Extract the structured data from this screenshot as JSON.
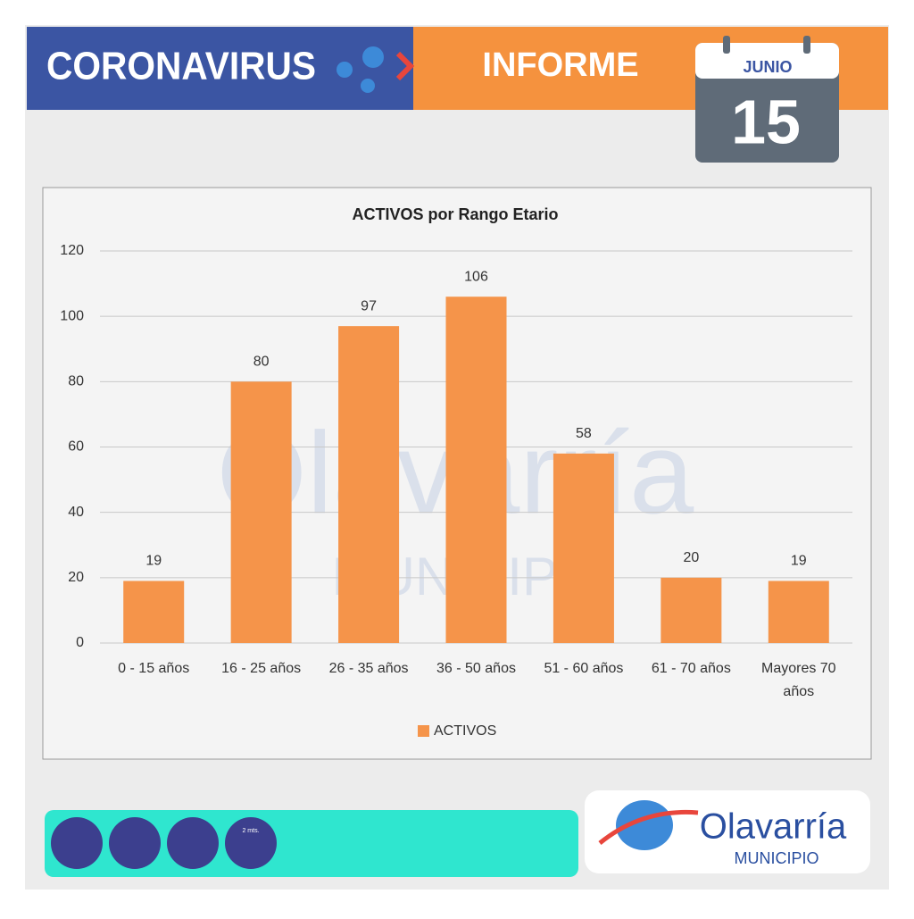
{
  "header": {
    "title": "CORONAVIRUS",
    "subtitle": "INFORME",
    "month": "JUNIO",
    "day": "15"
  },
  "chart_data": {
    "type": "bar",
    "title": "ACTIVOS por Rango Etario",
    "categories": [
      "0 - 15 años",
      "16 - 25 años",
      "26 - 35 años",
      "36 - 50 años",
      "51 - 60 años",
      "61 - 70 años",
      "Mayores 70 años"
    ],
    "series": [
      {
        "name": "ACTIVOS",
        "color": "#f5944a",
        "values": [
          19,
          80,
          97,
          106,
          58,
          20,
          19
        ]
      }
    ],
    "ylim": [
      0,
      120
    ],
    "yticks": [
      0,
      20,
      40,
      60,
      80,
      100,
      120
    ],
    "grid": true,
    "legend": "bottom"
  },
  "footer": {
    "distance_icon": "2 mts.",
    "logo": "Olavarría",
    "logo_sub": "MUNICIPIO"
  }
}
